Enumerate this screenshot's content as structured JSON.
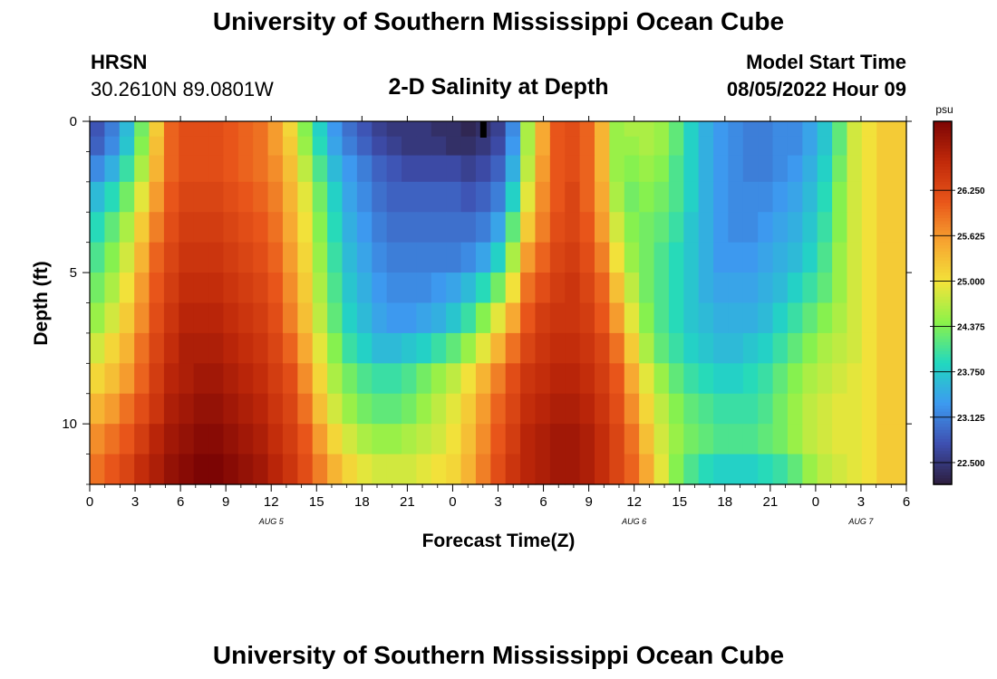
{
  "page": {
    "title": "University of Southern Mississippi Ocean Cube",
    "title_repeat": "University of Southern Mississippi Ocean Cube",
    "station": "HRSN",
    "coords": "30.2610N  89.0801W",
    "subtitle": "2-D Salinity at Depth",
    "start_label": "Model Start Time",
    "start_value": "08/05/2022 Hour 09"
  },
  "chart_data": {
    "type": "heatmap",
    "title": "2-D Salinity at Depth",
    "xlabel": "Forecast Time(Z)",
    "ylabel": "Depth (ft)",
    "units": "psu",
    "x_range_hours": [
      0,
      54
    ],
    "x_ticks": [
      {
        "h": 0,
        "label": "0"
      },
      {
        "h": 3,
        "label": "3"
      },
      {
        "h": 6,
        "label": "6"
      },
      {
        "h": 9,
        "label": "9"
      },
      {
        "h": 12,
        "label": "12"
      },
      {
        "h": 15,
        "label": "15"
      },
      {
        "h": 18,
        "label": "18"
      },
      {
        "h": 21,
        "label": "21"
      },
      {
        "h": 24,
        "label": "0"
      },
      {
        "h": 27,
        "label": "3"
      },
      {
        "h": 30,
        "label": "6"
      },
      {
        "h": 33,
        "label": "9"
      },
      {
        "h": 36,
        "label": "12"
      },
      {
        "h": 39,
        "label": "15"
      },
      {
        "h": 42,
        "label": "18"
      },
      {
        "h": 45,
        "label": "21"
      },
      {
        "h": 48,
        "label": "0"
      },
      {
        "h": 51,
        "label": "3"
      },
      {
        "h": 54,
        "label": "6"
      }
    ],
    "date_labels": [
      {
        "h": 12,
        "label": "AUG 5"
      },
      {
        "h": 36,
        "label": "AUG 6"
      },
      {
        "h": 51,
        "label": "AUG 7"
      }
    ],
    "y_range_ft": [
      0,
      12
    ],
    "y_ticks": [
      {
        "d": 0,
        "label": "0"
      },
      {
        "d": 5,
        "label": "5"
      },
      {
        "d": 10,
        "label": "10"
      }
    ],
    "depths_ft": [
      0.25,
      0.75,
      1.5,
      2.5,
      3.5,
      4.5,
      5.5,
      6.5,
      7.5,
      8.5,
      9.5,
      10.5,
      11.5
    ],
    "salinity_psu": [
      [
        22.8,
        23.1,
        23.6,
        24.3,
        25.2,
        26.0,
        26.2,
        26.2,
        26.2,
        26.1,
        26.0,
        25.9,
        25.6,
        25.1,
        24.4,
        23.8,
        23.3,
        23.0,
        22.8,
        22.6,
        22.5,
        22.5,
        22.5,
        22.4,
        22.4,
        22.3,
        22.4,
        22.6,
        23.2,
        24.6,
        25.5,
        26.1,
        26.2,
        26.0,
        25.4,
        24.5,
        24.6,
        24.6,
        24.5,
        24.2,
        23.8,
        23.5,
        23.3,
        23.2,
        23.1,
        23.1,
        23.2,
        23.2,
        23.4,
        23.7,
        24.2,
        24.8,
        25.0,
        25.2,
        25.2
      ],
      [
        22.9,
        23.2,
        23.7,
        24.4,
        25.3,
        26.0,
        26.2,
        26.2,
        26.2,
        26.1,
        26.0,
        25.9,
        25.6,
        25.2,
        24.5,
        23.9,
        23.4,
        23.1,
        22.9,
        22.7,
        22.6,
        22.5,
        22.5,
        22.5,
        22.4,
        22.4,
        22.5,
        22.7,
        23.3,
        24.6,
        25.5,
        26.1,
        26.2,
        26.0,
        25.4,
        24.5,
        24.5,
        24.6,
        24.5,
        24.2,
        23.8,
        23.5,
        23.3,
        23.2,
        23.1,
        23.1,
        23.2,
        23.2,
        23.4,
        23.7,
        24.2,
        24.8,
        25.0,
        25.2,
        25.2
      ],
      [
        23.2,
        23.5,
        24.0,
        24.6,
        25.4,
        26.0,
        26.2,
        26.2,
        26.2,
        26.1,
        26.0,
        25.9,
        25.7,
        25.3,
        24.7,
        24.1,
        23.6,
        23.3,
        23.1,
        22.9,
        22.8,
        22.7,
        22.7,
        22.7,
        22.7,
        22.6,
        22.7,
        22.9,
        23.5,
        24.7,
        25.6,
        26.1,
        26.2,
        26.0,
        25.4,
        24.5,
        24.4,
        24.5,
        24.4,
        24.1,
        23.8,
        23.5,
        23.3,
        23.2,
        23.1,
        23.1,
        23.2,
        23.3,
        23.5,
        23.8,
        24.3,
        24.8,
        25.0,
        25.2,
        25.2
      ],
      [
        23.6,
        23.9,
        24.3,
        24.9,
        25.6,
        26.1,
        26.3,
        26.3,
        26.3,
        26.2,
        26.1,
        26.0,
        25.8,
        25.4,
        24.9,
        24.3,
        23.8,
        23.4,
        23.2,
        23.0,
        22.9,
        22.9,
        22.9,
        22.9,
        22.9,
        22.8,
        22.9,
        23.1,
        23.8,
        24.9,
        25.7,
        26.1,
        26.3,
        26.0,
        25.5,
        24.6,
        24.3,
        24.4,
        24.3,
        24.1,
        23.8,
        23.5,
        23.3,
        23.2,
        23.2,
        23.2,
        23.3,
        23.4,
        23.6,
        23.9,
        24.4,
        24.8,
        25.0,
        25.2,
        25.2
      ],
      [
        23.9,
        24.2,
        24.6,
        25.2,
        25.8,
        26.2,
        26.4,
        26.4,
        26.4,
        26.3,
        26.2,
        26.1,
        25.9,
        25.5,
        25.0,
        24.4,
        23.9,
        23.5,
        23.3,
        23.1,
        23.0,
        23.0,
        23.0,
        23.0,
        23.0,
        23.0,
        23.1,
        23.4,
        24.2,
        25.2,
        25.8,
        26.2,
        26.3,
        26.1,
        25.6,
        24.8,
        24.4,
        24.3,
        24.2,
        24.0,
        23.7,
        23.5,
        23.3,
        23.2,
        23.2,
        23.3,
        23.4,
        23.5,
        23.7,
        24.0,
        24.4,
        24.8,
        25.0,
        25.2,
        25.2
      ],
      [
        24.1,
        24.4,
        24.8,
        25.4,
        26.0,
        26.3,
        26.5,
        26.5,
        26.5,
        26.4,
        26.3,
        26.2,
        26.0,
        25.6,
        25.1,
        24.5,
        24.0,
        23.6,
        23.4,
        23.2,
        23.1,
        23.1,
        23.1,
        23.1,
        23.1,
        23.2,
        23.4,
        23.8,
        24.6,
        25.6,
        26.0,
        26.3,
        26.4,
        26.2,
        25.8,
        25.0,
        24.5,
        24.3,
        24.1,
        23.9,
        23.7,
        23.5,
        23.3,
        23.3,
        23.3,
        23.4,
        23.5,
        23.6,
        23.8,
        24.1,
        24.5,
        24.8,
        25.0,
        25.2,
        25.2
      ],
      [
        24.3,
        24.6,
        25.0,
        25.6,
        26.1,
        26.4,
        26.6,
        26.6,
        26.6,
        26.5,
        26.4,
        26.3,
        26.1,
        25.7,
        25.2,
        24.6,
        24.1,
        23.7,
        23.5,
        23.3,
        23.2,
        23.2,
        23.2,
        23.3,
        23.4,
        23.6,
        23.9,
        24.3,
        25.0,
        25.9,
        26.2,
        26.4,
        26.5,
        26.3,
        26.0,
        25.3,
        24.7,
        24.3,
        24.1,
        23.9,
        23.7,
        23.5,
        23.4,
        23.4,
        23.4,
        23.5,
        23.6,
        23.8,
        24.0,
        24.2,
        24.5,
        24.8,
        25.0,
        25.2,
        25.2
      ],
      [
        24.5,
        24.8,
        25.2,
        25.7,
        26.2,
        26.5,
        26.7,
        26.7,
        26.7,
        26.6,
        26.5,
        26.4,
        26.2,
        25.8,
        25.3,
        24.7,
        24.2,
        23.8,
        23.6,
        23.4,
        23.3,
        23.3,
        23.4,
        23.5,
        23.7,
        24.0,
        24.4,
        24.9,
        25.5,
        26.1,
        26.4,
        26.5,
        26.5,
        26.4,
        26.1,
        25.6,
        24.9,
        24.4,
        24.1,
        23.9,
        23.7,
        23.6,
        23.5,
        23.5,
        23.5,
        23.6,
        23.8,
        24.0,
        24.2,
        24.4,
        24.6,
        24.8,
        25.0,
        25.2,
        25.2
      ],
      [
        24.8,
        25.1,
        25.4,
        25.9,
        26.3,
        26.6,
        26.8,
        26.8,
        26.8,
        26.7,
        26.6,
        26.5,
        26.3,
        26.0,
        25.5,
        24.9,
        24.4,
        24.0,
        23.8,
        23.6,
        23.6,
        23.7,
        23.8,
        24.0,
        24.2,
        24.5,
        24.9,
        25.4,
        25.9,
        26.3,
        26.5,
        26.6,
        26.6,
        26.5,
        26.3,
        25.9,
        25.2,
        24.6,
        24.2,
        24.0,
        23.8,
        23.7,
        23.6,
        23.6,
        23.7,
        23.8,
        24.0,
        24.2,
        24.4,
        24.6,
        24.7,
        24.8,
        25.0,
        25.2,
        25.2
      ],
      [
        25.1,
        25.3,
        25.6,
        26.0,
        26.4,
        26.7,
        26.8,
        26.9,
        26.9,
        26.8,
        26.7,
        26.6,
        26.4,
        26.2,
        25.7,
        25.1,
        24.6,
        24.3,
        24.1,
        24.0,
        24.0,
        24.1,
        24.3,
        24.5,
        24.7,
        25.0,
        25.4,
        25.8,
        26.2,
        26.5,
        26.6,
        26.7,
        26.7,
        26.6,
        26.4,
        26.1,
        25.5,
        24.9,
        24.5,
        24.2,
        24.0,
        23.9,
        23.8,
        23.8,
        23.9,
        24.0,
        24.2,
        24.4,
        24.6,
        24.7,
        24.8,
        24.9,
        25.0,
        25.2,
        25.2
      ],
      [
        25.4,
        25.6,
        25.9,
        26.2,
        26.5,
        26.8,
        26.9,
        27.0,
        27.0,
        26.9,
        26.8,
        26.7,
        26.5,
        26.3,
        25.9,
        25.3,
        24.8,
        24.5,
        24.3,
        24.2,
        24.2,
        24.3,
        24.5,
        24.7,
        24.9,
        25.2,
        25.6,
        26.0,
        26.3,
        26.6,
        26.7,
        26.8,
        26.8,
        26.7,
        26.5,
        26.2,
        25.7,
        25.1,
        24.7,
        24.4,
        24.2,
        24.1,
        24.0,
        24.0,
        24.0,
        24.1,
        24.3,
        24.5,
        24.7,
        24.8,
        24.9,
        24.9,
        25.0,
        25.2,
        25.2
      ],
      [
        25.7,
        25.9,
        26.1,
        26.4,
        26.7,
        26.9,
        27.0,
        27.1,
        27.1,
        27.0,
        26.9,
        26.8,
        26.6,
        26.4,
        26.1,
        25.6,
        25.1,
        24.8,
        24.6,
        24.5,
        24.5,
        24.6,
        24.7,
        24.8,
        25.0,
        25.3,
        25.7,
        26.1,
        26.4,
        26.7,
        26.8,
        26.9,
        26.9,
        26.8,
        26.6,
        26.3,
        25.9,
        25.3,
        24.8,
        24.5,
        24.3,
        24.2,
        24.1,
        24.1,
        24.1,
        24.2,
        24.3,
        24.5,
        24.7,
        24.8,
        24.9,
        24.9,
        25.0,
        25.2,
        25.2
      ],
      [
        25.9,
        26.1,
        26.3,
        26.6,
        26.8,
        27.0,
        27.1,
        27.2,
        27.2,
        27.1,
        27.0,
        26.9,
        26.7,
        26.5,
        26.2,
        25.8,
        25.4,
        25.1,
        24.9,
        24.8,
        24.8,
        24.8,
        24.9,
        25.0,
        25.1,
        25.4,
        25.8,
        26.2,
        26.5,
        26.7,
        26.8,
        26.9,
        26.9,
        26.8,
        26.6,
        26.3,
        26.0,
        25.5,
        24.9,
        24.4,
        24.1,
        23.9,
        23.8,
        23.8,
        23.8,
        23.9,
        24.0,
        24.2,
        24.5,
        24.7,
        24.8,
        24.9,
        25.0,
        25.2,
        25.2
      ]
    ],
    "colorbar": {
      "min": 22.2,
      "max": 27.2,
      "labeled_ticks": [
        "26.250",
        "25.625",
        "25.000",
        "24.375",
        "23.750",
        "23.125",
        "22.500"
      ],
      "units": "psu"
    },
    "colors": {
      "c1": "#2d1e3e",
      "c2": "#3e4fb0",
      "c3": "#3d9af0",
      "c4": "#21d8c0",
      "c5": "#8af24a",
      "c6": "#f2e43a",
      "c7": "#f7a531",
      "c8": "#e9561a",
      "c9": "#c0290a",
      "c10": "#7c0504"
    }
  }
}
